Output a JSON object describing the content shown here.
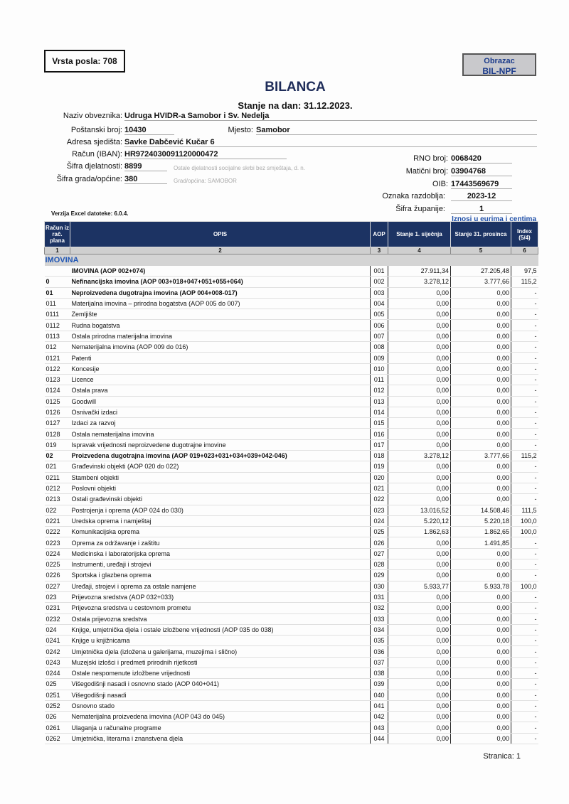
{
  "vrsta_posla": "Vrsta posla: 708",
  "obrazac": {
    "label": "Obrazac",
    "code": "BIL-NPF"
  },
  "title": "BILANCA",
  "stanje": "Stanje na dan: 31.12.2023.",
  "fields": {
    "naziv_lbl": "Naziv obveznika:",
    "naziv": "Udruga HVIDR-a Samobor i Sv. Nedelja",
    "postanski_lbl": "Poštanski broj:",
    "postanski": "10430",
    "mjesto_lbl": "Mjesto:",
    "mjesto": "Samobor",
    "adresa_lbl": "Adresa sjedišta:",
    "adresa": "Savke Dabčević Kučar 6",
    "racun_lbl": "Račun (IBAN):",
    "racun": "HR9724030091120000472",
    "djelatnost_lbl": "Šifra djelatnosti:",
    "djelatnost": "8899",
    "djelatnost_hint": "Ostale djelatnosti socijalne skrbi bez smještaja, d. n.",
    "grad_lbl": "Šifra grada/općine:",
    "grad": "380",
    "grad_hint": "Grad/općina: SAMOBOR",
    "rno_lbl": "RNO broj:",
    "rno": "0068420",
    "maticni_lbl": "Matični broj:",
    "maticni": "03904768",
    "oib_lbl": "OIB:",
    "oib": "17443569679",
    "razdoblje_lbl": "Oznaka razdoblja:",
    "razdoblje": "2023-12",
    "zupanija_lbl": "Šifra županije:",
    "zupanija": "1"
  },
  "verzija": "Verzija Excel datoteke: 6.0.4.",
  "iznosi": "Iznosi u eurima i centima",
  "table": {
    "headers": [
      "Račun iz rač. plana",
      "OPIS",
      "AOP",
      "Stanje 1. siječnja",
      "Stanje 31. prosinca",
      "Index (5/4)"
    ],
    "col_numbers": [
      "1",
      "2",
      "3",
      "4",
      "5",
      "6"
    ],
    "section": "IMOVINA",
    "rows": [
      [
        "",
        "IMOVINA (AOP 002+074)",
        "001",
        "27.911,34",
        "27.205,48",
        "97,5",
        1
      ],
      [
        "0",
        "Nefinancijska imovina (AOP 003+018+047+051+055+064)",
        "002",
        "3.278,12",
        "3.777,66",
        "115,2",
        1
      ],
      [
        "01",
        "Neproizvedena dugotrajna imovina (AOP 004+008-017)",
        "003",
        "0,00",
        "0,00",
        "-",
        1
      ],
      [
        "011",
        "Materijalna imovina – prirodna bogatstva (AOP 005 do 007)",
        "004",
        "0,00",
        "0,00",
        "-",
        0
      ],
      [
        "0111",
        "Zemljište",
        "005",
        "0,00",
        "0,00",
        "-",
        0
      ],
      [
        "0112",
        "Rudna bogatstva",
        "006",
        "0,00",
        "0,00",
        "-",
        0
      ],
      [
        "0113",
        "Ostala prirodna materijalna imovina",
        "007",
        "0,00",
        "0,00",
        "-",
        0
      ],
      [
        "012",
        "Nematerijalna imovina (AOP 009 do 016)",
        "008",
        "0,00",
        "0,00",
        "-",
        0
      ],
      [
        "0121",
        "Patenti",
        "009",
        "0,00",
        "0,00",
        "-",
        0
      ],
      [
        "0122",
        "Koncesije",
        "010",
        "0,00",
        "0,00",
        "-",
        0
      ],
      [
        "0123",
        "Licence",
        "011",
        "0,00",
        "0,00",
        "-",
        0
      ],
      [
        "0124",
        "Ostala prava",
        "012",
        "0,00",
        "0,00",
        "-",
        0
      ],
      [
        "0125",
        "Goodwill",
        "013",
        "0,00",
        "0,00",
        "-",
        0
      ],
      [
        "0126",
        "Osnivački izdaci",
        "014",
        "0,00",
        "0,00",
        "-",
        0
      ],
      [
        "0127",
        "Izdaci za razvoj",
        "015",
        "0,00",
        "0,00",
        "-",
        0
      ],
      [
        "0128",
        "Ostala nematerijalna imovina",
        "016",
        "0,00",
        "0,00",
        "-",
        0
      ],
      [
        "019",
        "Ispravak vrijednosti neproizvedene dugotrajne imovine",
        "017",
        "0,00",
        "0,00",
        "-",
        0
      ],
      [
        "02",
        "Proizvedena dugotrajna imovina (AOP 019+023+031+034+039+042-046)",
        "018",
        "3.278,12",
        "3.777,66",
        "115,2",
        1
      ],
      [
        "021",
        "Građevinski objekti (AOP 020 do 022)",
        "019",
        "0,00",
        "0,00",
        "-",
        0
      ],
      [
        "0211",
        "Stambeni objekti",
        "020",
        "0,00",
        "0,00",
        "-",
        0
      ],
      [
        "0212",
        "Poslovni objekti",
        "021",
        "0,00",
        "0,00",
        "-",
        0
      ],
      [
        "0213",
        "Ostali građevinski objekti",
        "022",
        "0,00",
        "0,00",
        "-",
        0
      ],
      [
        "022",
        "Postrojenja i oprema (AOP 024 do 030)",
        "023",
        "13.016,52",
        "14.508,46",
        "111,5",
        0
      ],
      [
        "0221",
        "Uredska oprema i namještaj",
        "024",
        "5.220,12",
        "5.220,18",
        "100,0",
        0
      ],
      [
        "0222",
        "Komunikacijska oprema",
        "025",
        "1.862,63",
        "1.862,65",
        "100,0",
        0
      ],
      [
        "0223",
        "Oprema za održavanje i zaštitu",
        "026",
        "0,00",
        "1.491,85",
        "-",
        0
      ],
      [
        "0224",
        "Medicinska i laboratorijska oprema",
        "027",
        "0,00",
        "0,00",
        "-",
        0
      ],
      [
        "0225",
        "Instrumenti, uređaji i strojevi",
        "028",
        "0,00",
        "0,00",
        "-",
        0
      ],
      [
        "0226",
        "Sportska i glazbena oprema",
        "029",
        "0,00",
        "0,00",
        "-",
        0
      ],
      [
        "0227",
        "Uređaji, strojevi i oprema za ostale namjene",
        "030",
        "5.933,77",
        "5.933,78",
        "100,0",
        0
      ],
      [
        "023",
        "Prijevozna sredstva (AOP 032+033)",
        "031",
        "0,00",
        "0,00",
        "-",
        0
      ],
      [
        "0231",
        "Prijevozna sredstva u cestovnom prometu",
        "032",
        "0,00",
        "0,00",
        "-",
        0
      ],
      [
        "0232",
        "Ostala prijevozna sredstva",
        "033",
        "0,00",
        "0,00",
        "-",
        0
      ],
      [
        "024",
        "Knjige, umjetnička djela i ostale izložbene vrijednosti (AOP 035 do 038)",
        "034",
        "0,00",
        "0,00",
        "-",
        0
      ],
      [
        "0241",
        "Knjige u knjižnicama",
        "035",
        "0,00",
        "0,00",
        "-",
        0
      ],
      [
        "0242",
        "Umjetnička djela (izložena u galerijama, muzejima i slično)",
        "036",
        "0,00",
        "0,00",
        "-",
        0
      ],
      [
        "0243",
        "Muzejski izlošci i predmeti prirodnih rijetkosti",
        "037",
        "0,00",
        "0,00",
        "-",
        0
      ],
      [
        "0244",
        "Ostale nespomenute izložbene vrijednosti",
        "038",
        "0,00",
        "0,00",
        "-",
        0
      ],
      [
        "025",
        "Višegodišnji nasadi i osnovno stado (AOP 040+041)",
        "039",
        "0,00",
        "0,00",
        "-",
        0
      ],
      [
        "0251",
        "Višegodišnji nasadi",
        "040",
        "0,00",
        "0,00",
        "-",
        0
      ],
      [
        "0252",
        "Osnovno stado",
        "041",
        "0,00",
        "0,00",
        "-",
        0
      ],
      [
        "026",
        "Nematerijalna proizvedena imovina (AOP 043 do 045)",
        "042",
        "0,00",
        "0,00",
        "-",
        0
      ],
      [
        "0261",
        "Ulaganja u računalne programe",
        "043",
        "0,00",
        "0,00",
        "-",
        0
      ],
      [
        "0262",
        "Umjetnička, literarna i znanstvena djela",
        "044",
        "0,00",
        "0,00",
        "-",
        0
      ]
    ]
  },
  "stranica": "Stranica: 1"
}
